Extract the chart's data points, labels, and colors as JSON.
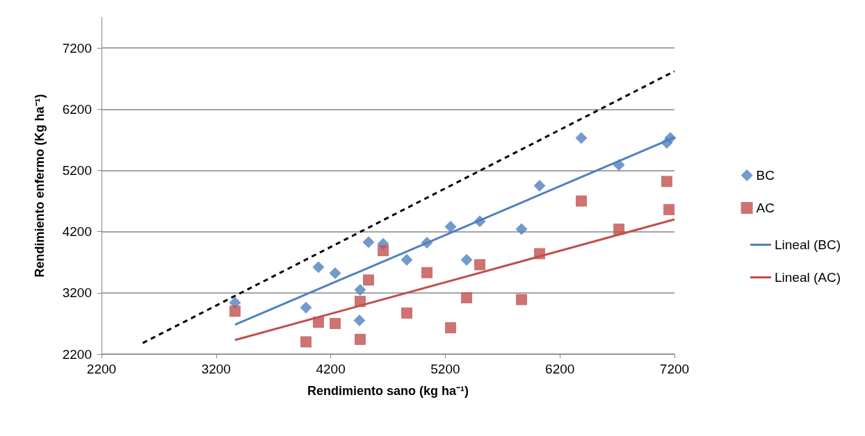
{
  "chart_data": {
    "type": "scatter",
    "xlabel": "Rendimiento sano (kg ha⁻¹)",
    "ylabel": "Rendimiento enfermo (Kg ha⁻¹)",
    "xlim": [
      2200,
      7200
    ],
    "xticks": [
      2200,
      3200,
      4200,
      5200,
      6200,
      7200
    ],
    "ylim": [
      2200,
      7700
    ],
    "yticks": [
      2200,
      3200,
      4200,
      5200,
      6200,
      7200
    ],
    "grid": "y",
    "legend": "right",
    "series": [
      {
        "name": "BC",
        "marker": "diamond",
        "color": "#4f81bd",
        "x": [
          3365,
          3984,
          4093,
          4239,
          4457,
          4451,
          4530,
          4658,
          4864,
          5040,
          5246,
          5386,
          5501,
          5865,
          6023,
          6387,
          6715,
          7133,
          7164
        ],
        "values": [
          3040,
          2960,
          3620,
          3520,
          3250,
          2750,
          4030,
          4000,
          3740,
          4020,
          4280,
          3740,
          4370,
          4240,
          4950,
          5730,
          5290,
          5650,
          5730
        ]
      },
      {
        "name": "AC",
        "marker": "square",
        "color": "#c0504d",
        "x": [
          3365,
          3984,
          4093,
          4239,
          4457,
          4457,
          4530,
          4658,
          4864,
          5040,
          5246,
          5386,
          5501,
          5865,
          6023,
          6387,
          6715,
          7133,
          7152
        ],
        "values": [
          2900,
          2400,
          2720,
          2700,
          3060,
          2440,
          3410,
          3890,
          2870,
          3530,
          2630,
          3120,
          3660,
          3090,
          3840,
          4700,
          4240,
          5020,
          4560
        ]
      },
      {
        "name": "Lineal (BC)",
        "type": "line",
        "marker": "none",
        "line_style": "solid",
        "color": "#4f81bd",
        "x": [
          3365,
          7200
        ],
        "values": [
          2680,
          5740
        ]
      },
      {
        "name": "Lineal (AC)",
        "type": "line",
        "marker": "none",
        "line_style": "solid",
        "color": "#c0504d",
        "x": [
          3365,
          7200
        ],
        "values": [
          2430,
          4400
        ]
      },
      {
        "type": "line",
        "marker": "none",
        "line_style": "dashed",
        "color": "#000000",
        "x": [
          2560,
          7200
        ],
        "values": [
          2380,
          6820
        ]
      }
    ]
  }
}
